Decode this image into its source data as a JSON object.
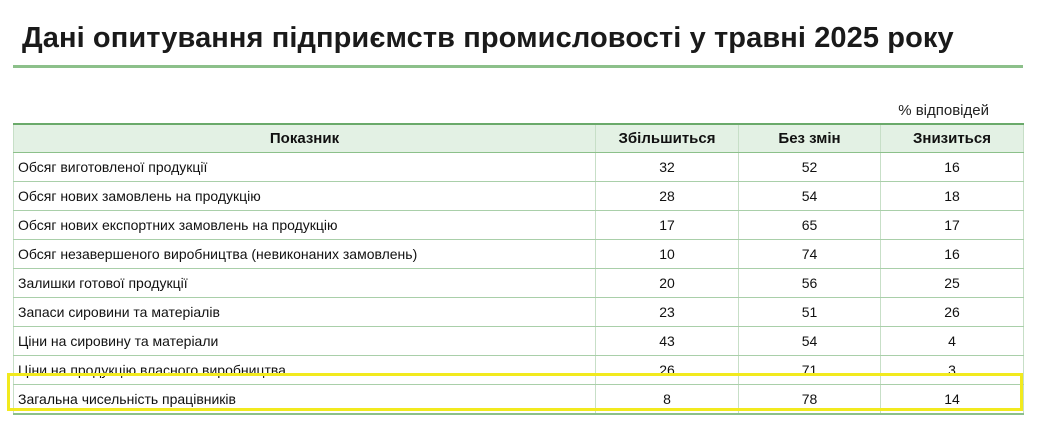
{
  "title": "Дані опитування підприємств промисловості у травні 2025 року",
  "unit_note": "% відповідей",
  "table": {
    "headers": [
      "Показник",
      "Збільшиться",
      "Без змін",
      "Знизиться"
    ],
    "rows": [
      {
        "label": "Обсяг виготовленої продукції",
        "increase": "32",
        "no_change": "52",
        "decrease": "16"
      },
      {
        "label": "Обсяг нових замовлень на продукцію",
        "increase": "28",
        "no_change": "54",
        "decrease": "18"
      },
      {
        "label": "Обсяг нових експортних замовлень на продукцію",
        "increase": "17",
        "no_change": "65",
        "decrease": "17"
      },
      {
        "label": "Обсяг незавершеного виробництва (невиконаних замовлень)",
        "increase": "10",
        "no_change": "74",
        "decrease": "16"
      },
      {
        "label": "Залишки готової продукції",
        "increase": "20",
        "no_change": "56",
        "decrease": "25"
      },
      {
        "label": "Запаси сировини та матеріалів",
        "increase": "23",
        "no_change": "51",
        "decrease": "26"
      },
      {
        "label": "Ціни на сировину та матеріали",
        "increase": "43",
        "no_change": "54",
        "decrease": "4"
      },
      {
        "label": "Ціни на продукцію власного виробництва",
        "increase": "26",
        "no_change": "71",
        "decrease": "3"
      },
      {
        "label": "Загальна чисельність працівників",
        "increase": "8",
        "no_change": "78",
        "decrease": "14"
      }
    ]
  },
  "colors": {
    "header_bg": "#e3f1e4",
    "rule": "#8cc08a",
    "highlight": "#f2ea1e"
  }
}
